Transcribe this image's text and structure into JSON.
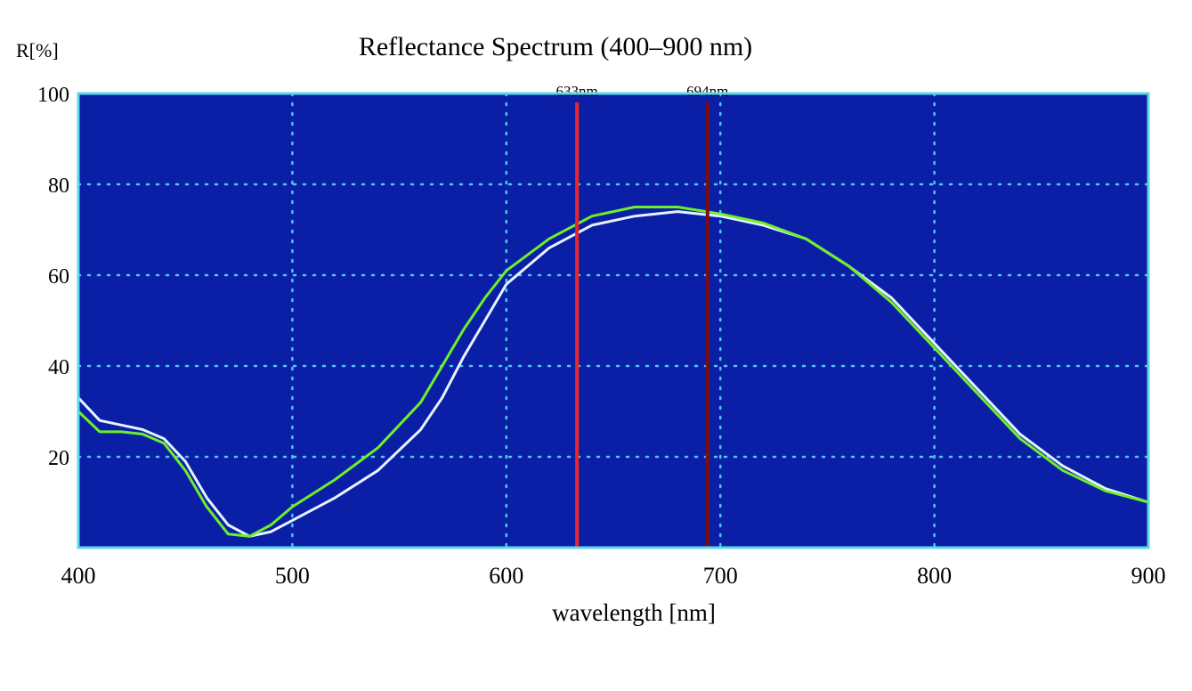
{
  "chart_data": {
    "type": "line",
    "title": "Reflectance Spectrum (400–900 nm)",
    "xlabel": "wavelength [nm]",
    "ylabel": "R[%]",
    "xlim": [
      400,
      900
    ],
    "ylim": [
      0,
      100
    ],
    "grid": true,
    "xticks": [
      "400",
      "500",
      "600",
      "700",
      "800",
      "900"
    ],
    "yticks": [
      "20",
      "40",
      "60",
      "80",
      "100"
    ],
    "colors": {
      "plot_bg": "#0b1fa6",
      "frame": "#5fd6e6",
      "grid": "#4fc8ee"
    },
    "x": [
      400,
      410,
      420,
      430,
      440,
      450,
      460,
      470,
      480,
      490,
      500,
      520,
      540,
      560,
      570,
      580,
      590,
      600,
      620,
      640,
      660,
      680,
      700,
      720,
      740,
      760,
      780,
      800,
      820,
      840,
      860,
      880,
      900
    ],
    "series": [
      {
        "color": "#e6f2ff",
        "values": [
          33,
          28,
          27,
          26,
          24,
          19,
          11,
          5,
          2.5,
          3.5,
          6,
          11,
          17,
          26,
          33,
          42,
          50,
          58,
          66,
          71,
          73,
          74,
          73,
          71,
          68,
          62,
          55,
          45,
          35,
          25,
          18,
          13,
          10
        ]
      },
      {
        "color": "#6df02a",
        "values": [
          30,
          25.5,
          25.5,
          25,
          23,
          17,
          9,
          3,
          2.5,
          5,
          9,
          15,
          22,
          32,
          40,
          48,
          55,
          61,
          68,
          73,
          75,
          75,
          73.5,
          71.5,
          68,
          62,
          54,
          44,
          34,
          24,
          17,
          12.5,
          10
        ]
      }
    ],
    "markers": [
      {
        "x": 633,
        "label": "633nm",
        "color": "#e8262a",
        "label_color": "#7a1010"
      },
      {
        "x": 694,
        "label": "694nm",
        "color": "#7a0c14",
        "label_color": "#000000"
      }
    ]
  }
}
